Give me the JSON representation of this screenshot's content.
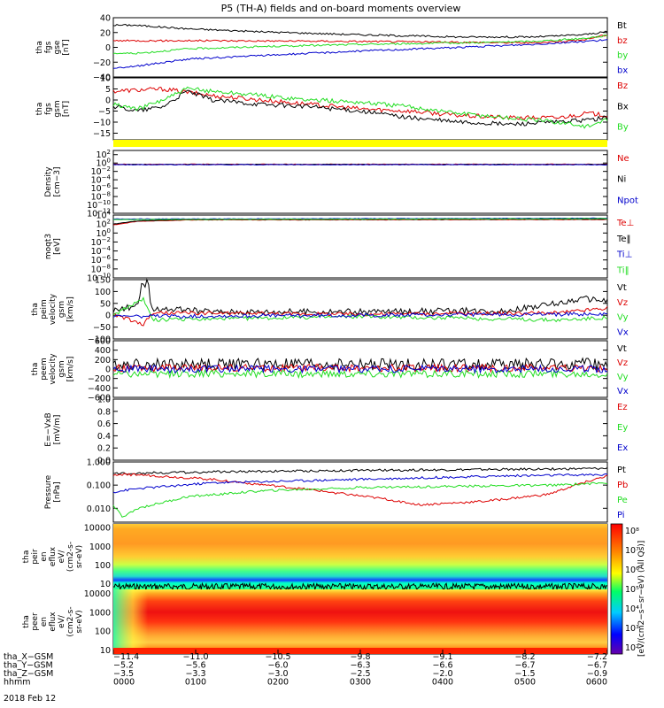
{
  "title": "P5 (TH-A) fields and on-board moments overview",
  "colors": {
    "black": "#000000",
    "red": "#dd0000",
    "green": "#22dd22",
    "blue": "#0000cc",
    "yellow": "#ffff00"
  },
  "chart_data": [
    {
      "type": "line",
      "id": "fgs_gse",
      "ylabel_lines": [
        "tha",
        "fgs",
        "gse",
        "[nT]"
      ],
      "ylim": [
        -40,
        40
      ],
      "yticks": [
        {
          "v": 40,
          "t": "40"
        },
        {
          "v": 20,
          "t": "20"
        },
        {
          "v": 0,
          "t": "0"
        },
        {
          "v": -20,
          "t": "−20"
        },
        {
          "v": -40,
          "t": "−40"
        }
      ],
      "series": [
        {
          "name": "Bt",
          "color": "black",
          "points": [
            [
              0,
              30
            ],
            [
              0.04,
              30
            ],
            [
              0.15,
              25
            ],
            [
              0.3,
              21
            ],
            [
              0.5,
              17
            ],
            [
              0.7,
              14
            ],
            [
              0.85,
              14
            ],
            [
              0.95,
              17
            ],
            [
              1,
              21
            ]
          ]
        },
        {
          "name": "bz",
          "color": "red",
          "points": [
            [
              0,
              9
            ],
            [
              0.2,
              9
            ],
            [
              0.5,
              8
            ],
            [
              0.7,
              7
            ],
            [
              0.85,
              6
            ],
            [
              0.95,
              10
            ],
            [
              1,
              17
            ]
          ]
        },
        {
          "name": "by",
          "color": "green",
          "points": [
            [
              0,
              -8
            ],
            [
              0.05,
              -8
            ],
            [
              0.15,
              -2
            ],
            [
              0.3,
              1
            ],
            [
              0.5,
              4
            ],
            [
              0.7,
              6
            ],
            [
              0.85,
              8
            ],
            [
              0.95,
              12
            ],
            [
              1,
              16
            ]
          ]
        },
        {
          "name": "bx",
          "color": "blue",
          "points": [
            [
              0,
              -28
            ],
            [
              0.05,
              -25
            ],
            [
              0.15,
              -16
            ],
            [
              0.3,
              -11
            ],
            [
              0.5,
              -5
            ],
            [
              0.7,
              0
            ],
            [
              0.85,
              4
            ],
            [
              0.95,
              8
            ],
            [
              1,
              10
            ]
          ]
        }
      ]
    },
    {
      "type": "line",
      "id": "fgs_gsm",
      "ylabel_lines": [
        "tha",
        "fgs",
        "gsm",
        "[nT]"
      ],
      "ylim": [
        -18,
        10
      ],
      "yticks": [
        {
          "v": 10,
          "t": "10"
        },
        {
          "v": 5,
          "t": "5"
        },
        {
          "v": 0,
          "t": "0"
        },
        {
          "v": -5,
          "t": "−5"
        },
        {
          "v": -10,
          "t": "−10"
        },
        {
          "v": -15,
          "t": "−15"
        }
      ],
      "series": [
        {
          "name": "Bz",
          "color": "red",
          "points": [
            [
              0,
              4
            ],
            [
              0.1,
              5
            ],
            [
              0.2,
              2
            ],
            [
              0.3,
              0
            ],
            [
              0.4,
              -2
            ],
            [
              0.5,
              -4
            ],
            [
              0.6,
              -5
            ],
            [
              0.7,
              -7
            ],
            [
              0.8,
              -8
            ],
            [
              0.9,
              -8
            ],
            [
              0.96,
              -6
            ],
            [
              1,
              -7
            ]
          ]
        },
        {
          "name": "Bx",
          "color": "black",
          "points": [
            [
              0,
              -3
            ],
            [
              0.05,
              -5
            ],
            [
              0.1,
              -3
            ],
            [
              0.15,
              4
            ],
            [
              0.2,
              0
            ],
            [
              0.3,
              -2
            ],
            [
              0.4,
              -3
            ],
            [
              0.5,
              -5
            ],
            [
              0.6,
              -8
            ],
            [
              0.7,
              -10
            ],
            [
              0.8,
              -11
            ],
            [
              0.9,
              -10
            ],
            [
              0.96,
              -9
            ],
            [
              1,
              -8
            ]
          ]
        },
        {
          "name": "By",
          "color": "green",
          "points": [
            [
              0,
              -2
            ],
            [
              0.05,
              -4
            ],
            [
              0.1,
              0
            ],
            [
              0.15,
              5
            ],
            [
              0.2,
              4
            ],
            [
              0.3,
              2
            ],
            [
              0.4,
              0
            ],
            [
              0.5,
              -1
            ],
            [
              0.6,
              -3
            ],
            [
              0.7,
              -6
            ],
            [
              0.8,
              -8
            ],
            [
              0.9,
              -10
            ],
            [
              0.96,
              -12
            ],
            [
              1,
              -9
            ]
          ]
        }
      ]
    },
    {
      "type": "line",
      "id": "density",
      "ylabel_lines": [
        "Density",
        "[cm−3]"
      ],
      "ylim_log": [
        -12,
        3
      ],
      "ytick_exps": [
        2,
        0,
        -2,
        -4,
        -6,
        -8,
        -10,
        -12
      ],
      "series": [
        {
          "name": "Ne",
          "color": "red",
          "points": [
            [
              0,
              -0.3
            ],
            [
              1,
              -0.3
            ]
          ]
        },
        {
          "name": "Ni",
          "color": "black",
          "points": [
            [
              0,
              -0.35
            ],
            [
              1,
              -0.35
            ]
          ]
        },
        {
          "name": "Npot",
          "color": "blue",
          "points": [
            [
              0,
              -0.4
            ],
            [
              1,
              -0.4
            ]
          ]
        }
      ]
    },
    {
      "type": "line",
      "id": "temperature",
      "ylabel_lines": [
        "moqt3",
        "[eV]"
      ],
      "ylim_log": [
        -10,
        4
      ],
      "ytick_exps": [
        4,
        2,
        0,
        -2,
        -4,
        -6,
        -8,
        -10
      ],
      "series": [
        {
          "name": "Te⊥",
          "color": "red",
          "points": [
            [
              0,
              1.8
            ],
            [
              0.05,
              2.6
            ],
            [
              0.15,
              2.9
            ],
            [
              1,
              3.0
            ]
          ]
        },
        {
          "name": "Te‖",
          "color": "black",
          "points": [
            [
              0,
              2.0
            ],
            [
              0.05,
              2.7
            ],
            [
              0.15,
              3.0
            ],
            [
              1,
              3.1
            ]
          ]
        },
        {
          "name": "Ti⊥",
          "color": "blue",
          "points": [
            [
              0,
              3.1
            ],
            [
              1,
              3.3
            ]
          ]
        },
        {
          "name": "Ti‖",
          "color": "green",
          "points": [
            [
              0,
              3.0
            ],
            [
              1,
              3.2
            ]
          ]
        }
      ]
    },
    {
      "type": "line",
      "id": "peim_velocity",
      "ylabel_lines": [
        "tha",
        "peim",
        "velocity",
        "gsm",
        "[km/s]"
      ],
      "ylim": [
        -100,
        150
      ],
      "yticks": [
        {
          "v": 150,
          "t": "150"
        },
        {
          "v": 100,
          "t": "100"
        },
        {
          "v": 50,
          "t": "50"
        },
        {
          "v": 0,
          "t": "0"
        },
        {
          "v": -50,
          "t": "−50"
        },
        {
          "v": -100,
          "t": "−100"
        }
      ],
      "series": [
        {
          "name": "Vt",
          "color": "black",
          "points": [
            [
              0,
              20
            ],
            [
              0.05,
              40
            ],
            [
              0.06,
              120
            ],
            [
              0.08,
              30
            ],
            [
              0.2,
              15
            ],
            [
              0.5,
              15
            ],
            [
              0.8,
              20
            ],
            [
              0.9,
              50
            ],
            [
              0.95,
              70
            ],
            [
              1,
              60
            ]
          ]
        },
        {
          "name": "Vz",
          "color": "red",
          "points": [
            [
              0,
              5
            ],
            [
              0.06,
              -40
            ],
            [
              0.08,
              10
            ],
            [
              0.5,
              5
            ],
            [
              0.9,
              10
            ],
            [
              1,
              30
            ]
          ]
        },
        {
          "name": "Vy",
          "color": "green",
          "points": [
            [
              0,
              0
            ],
            [
              0.06,
              70
            ],
            [
              0.08,
              -20
            ],
            [
              0.5,
              -5
            ],
            [
              0.9,
              -20
            ],
            [
              1,
              -10
            ]
          ]
        },
        {
          "name": "Vx",
          "color": "blue",
          "points": [
            [
              0,
              -5
            ],
            [
              0.5,
              0
            ],
            [
              1,
              5
            ]
          ]
        }
      ]
    },
    {
      "type": "line",
      "id": "peem_velocity",
      "ylabel_lines": [
        "tha",
        "peem",
        "velocity",
        "gsm",
        "[km/s]"
      ],
      "ylim": [
        -600,
        600
      ],
      "yticks": [
        {
          "v": 600,
          "t": "600"
        },
        {
          "v": 400,
          "t": "400"
        },
        {
          "v": 200,
          "t": "200"
        },
        {
          "v": 0,
          "t": "0"
        },
        {
          "v": -200,
          "t": "−200"
        },
        {
          "v": -400,
          "t": "−400"
        },
        {
          "v": -600,
          "t": "−600"
        }
      ],
      "series": [
        {
          "name": "Vt",
          "color": "black",
          "points": [
            [
              0,
              100
            ],
            [
              1,
              100
            ]
          ]
        },
        {
          "name": "Vz",
          "color": "red",
          "points": [
            [
              0,
              20
            ],
            [
              1,
              20
            ]
          ]
        },
        {
          "name": "Vy",
          "color": "green",
          "points": [
            [
              0,
              -100
            ],
            [
              1,
              -100
            ]
          ]
        },
        {
          "name": "Vx",
          "color": "blue",
          "points": [
            [
              0,
              0
            ],
            [
              1,
              0
            ]
          ]
        }
      ]
    },
    {
      "type": "line",
      "id": "efield",
      "ylabel_lines": [
        "E=−VxB",
        "[mV/m]"
      ],
      "ylim": [
        0,
        1
      ],
      "yticks": [
        {
          "v": 1.0,
          "t": "1.0"
        },
        {
          "v": 0.8,
          "t": "0.8"
        },
        {
          "v": 0.6,
          "t": "0.6"
        },
        {
          "v": 0.4,
          "t": "0.4"
        },
        {
          "v": 0.2,
          "t": "0.2"
        },
        {
          "v": 0.0,
          "t": "0.0"
        }
      ],
      "series": [
        {
          "name": "Ez",
          "color": "red",
          "points": []
        },
        {
          "name": "Ey",
          "color": "green",
          "points": []
        },
        {
          "name": "Ex",
          "color": "blue",
          "points": []
        }
      ]
    },
    {
      "type": "line",
      "id": "pressure",
      "ylabel_lines": [
        "Pressure",
        "[nPa]"
      ],
      "ylim_log": [
        -2.6,
        0
      ],
      "yticks": [
        {
          "v": 0,
          "t": "1.000"
        },
        {
          "v": -1,
          "t": "0.100"
        },
        {
          "v": -2,
          "t": "0.010"
        }
      ],
      "series": [
        {
          "name": "Pt",
          "color": "black",
          "points": [
            [
              0,
              -0.5
            ],
            [
              0.05,
              -0.48
            ],
            [
              0.3,
              -0.4
            ],
            [
              0.6,
              -0.35
            ],
            [
              0.9,
              -0.3
            ],
            [
              1,
              -0.28
            ]
          ]
        },
        {
          "name": "Pb",
          "color": "red",
          "points": [
            [
              0,
              -0.55
            ],
            [
              0.05,
              -0.55
            ],
            [
              0.2,
              -0.75
            ],
            [
              0.4,
              -1.2
            ],
            [
              0.55,
              -1.6
            ],
            [
              0.62,
              -1.85
            ],
            [
              0.75,
              -1.7
            ],
            [
              0.88,
              -1.4
            ],
            [
              0.95,
              -0.9
            ],
            [
              1,
              -0.6
            ]
          ]
        },
        {
          "name": "Pe",
          "color": "green",
          "points": [
            [
              0,
              -1.9
            ],
            [
              0.02,
              -2.4
            ],
            [
              0.05,
              -2.0
            ],
            [
              0.15,
              -1.5
            ],
            [
              0.3,
              -1.25
            ],
            [
              0.5,
              -1.1
            ],
            [
              0.7,
              -1.05
            ],
            [
              0.9,
              -1.0
            ],
            [
              1,
              -0.9
            ]
          ]
        },
        {
          "name": "Pi",
          "color": "blue",
          "points": [
            [
              0,
              -1.3
            ],
            [
              0.05,
              -1.15
            ],
            [
              0.2,
              -0.9
            ],
            [
              0.4,
              -0.8
            ],
            [
              0.6,
              -0.7
            ],
            [
              0.8,
              -0.6
            ],
            [
              1,
              -0.55
            ]
          ]
        }
      ]
    },
    {
      "type": "heatmap",
      "id": "peir_eflux",
      "ylabel_lines": [
        "tha",
        "peir",
        "en",
        "eflux",
        "eV/",
        "(cm2-s-",
        "sr-eV)"
      ],
      "ylim_log": [
        0.7,
        4.2
      ],
      "yticks": [
        {
          "v": 4,
          "t": "10000"
        },
        {
          "v": 3,
          "t": "1000"
        },
        {
          "v": 2,
          "t": "100"
        },
        {
          "v": 1,
          "t": "10"
        }
      ]
    },
    {
      "type": "heatmap",
      "id": "peer_eflux",
      "ylabel_lines": [
        "tha",
        "peer",
        "en",
        "eflux",
        "eV/",
        "(cm2-s-",
        "sr-eV)"
      ],
      "ylim_log": [
        0.8,
        4.2
      ],
      "yticks": [
        {
          "v": 4,
          "t": "10000"
        },
        {
          "v": 3,
          "t": "1000"
        },
        {
          "v": 2,
          "t": "100"
        },
        {
          "v": 1,
          "t": "10"
        }
      ]
    }
  ],
  "colorbar": {
    "label": "[eV/(cm2−s−sr−eV) (All Qs)]",
    "ticks": [
      "10⁸",
      "10⁷",
      "10⁶",
      "10⁵",
      "10⁴",
      "10³",
      "10²"
    ]
  },
  "xaxis": {
    "rows": [
      {
        "label": "tha_X−GSM",
        "values": [
          "−11.4",
          "−11.0",
          "−10.5",
          "−9.8",
          "−9.1",
          "−8.2",
          "−7.2"
        ]
      },
      {
        "label": "tha_Y−GSM",
        "values": [
          "−5.2",
          "−5.6",
          "−6.0",
          "−6.3",
          "−6.6",
          "−6.7",
          "−6.7"
        ]
      },
      {
        "label": "tha_Z−GSM",
        "values": [
          "−3.5",
          "−3.3",
          "−3.0",
          "−2.5",
          "−2.0",
          "−1.5",
          "−0.9"
        ]
      },
      {
        "label": "hhmm",
        "values": [
          "0000",
          "0100",
          "0200",
          "0300",
          "0400",
          "0500",
          "0600"
        ]
      }
    ],
    "date": "2018 Feb 12"
  }
}
